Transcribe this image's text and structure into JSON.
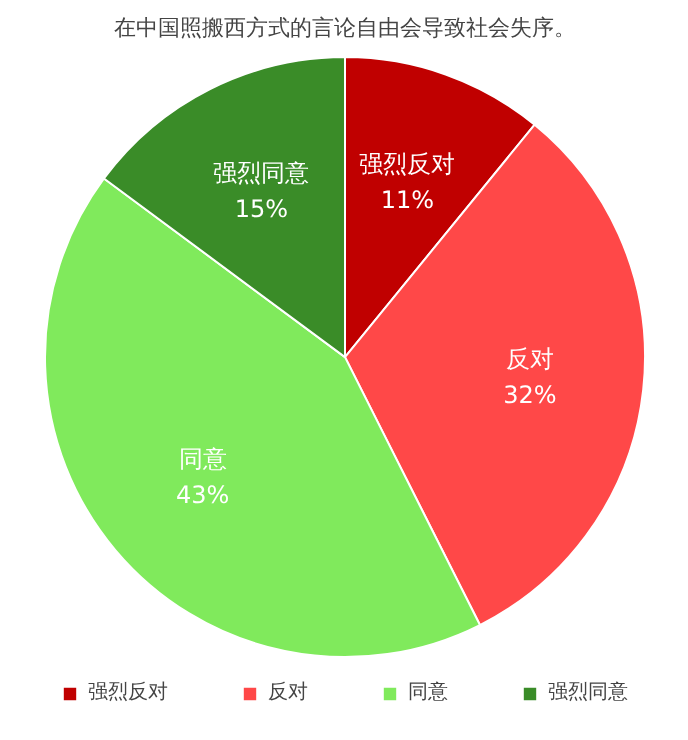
{
  "chart_data": {
    "type": "pie",
    "title": "在中国照搬西方式的言论自由会导致社会失序。",
    "categories": [
      "强烈反对",
      "反对",
      "同意",
      "强烈同意"
    ],
    "values": [
      11,
      32,
      43,
      15
    ],
    "colors": [
      "#c00000",
      "#ff4848",
      "#80ea5c",
      "#3a8c28"
    ],
    "value_labels": [
      "11%",
      "32%",
      "43%",
      "15%"
    ],
    "legend": "bottom"
  }
}
